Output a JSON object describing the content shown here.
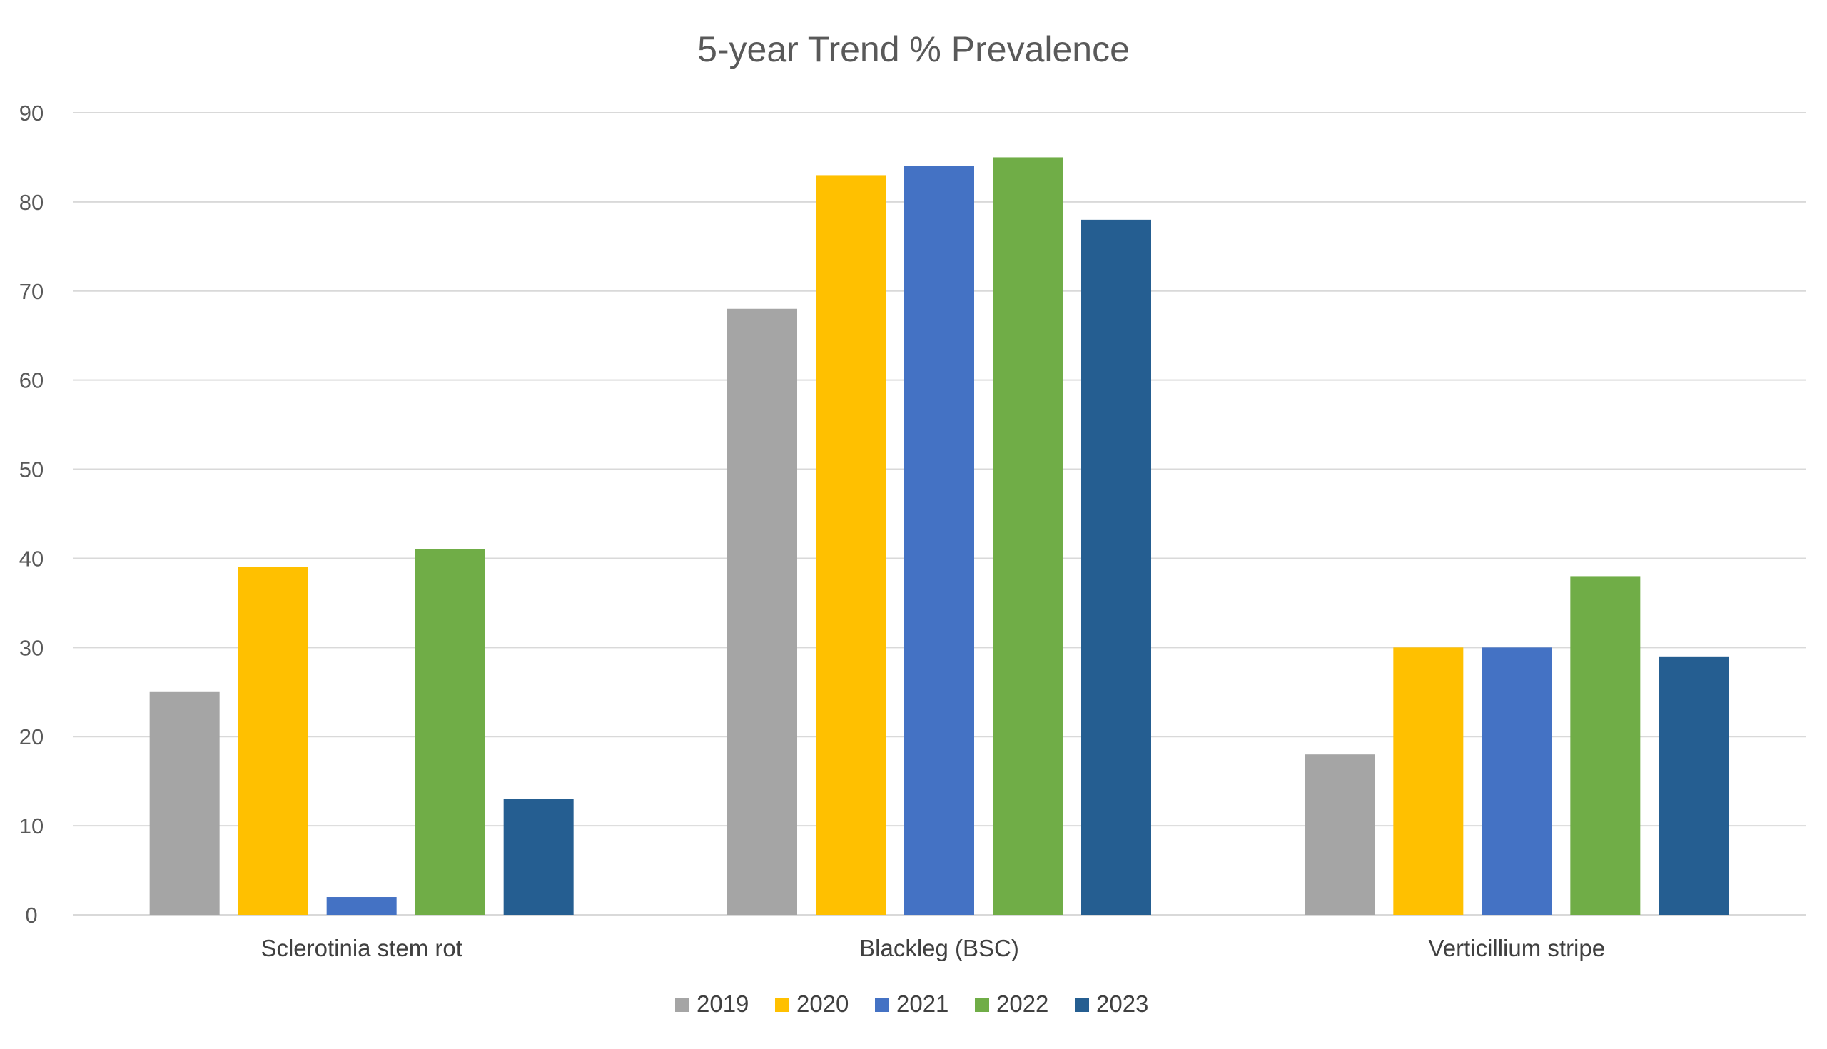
{
  "chart_data": {
    "type": "bar",
    "title": "5-year Trend % Prevalence",
    "xlabel": "",
    "ylabel": "",
    "categories": [
      "Sclerotinia stem rot",
      "Blackleg (BSC)",
      "Verticillium stripe"
    ],
    "series": [
      {
        "name": "2019",
        "color": "#a5a5a5",
        "values": [
          25,
          68,
          18
        ]
      },
      {
        "name": "2020",
        "color": "#ffc000",
        "values": [
          39,
          83,
          30
        ]
      },
      {
        "name": "2021",
        "color": "#4472c4",
        "values": [
          2,
          84,
          30
        ]
      },
      {
        "name": "2022",
        "color": "#70ad47",
        "values": [
          41,
          85,
          38
        ]
      },
      {
        "name": "2023",
        "color": "#255e91",
        "values": [
          13,
          78,
          29
        ]
      }
    ],
    "ylim": [
      0,
      90
    ],
    "yticks": [
      0,
      10,
      20,
      30,
      40,
      50,
      60,
      70,
      80,
      90
    ],
    "grid": true,
    "legend": "bottom"
  }
}
